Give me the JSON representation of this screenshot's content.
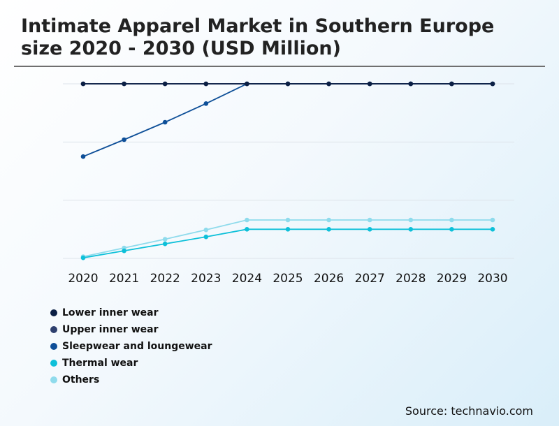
{
  "title": "Intimate Apparel Market in Southern Europe size 2020 - 2030 (USD Million)",
  "source": "Source: technavio.com",
  "chart_data": {
    "type": "line",
    "title": "Intimate Apparel Market in Southern Europe size 2020 - 2030 (USD Million)",
    "xlabel": "",
    "ylabel": "",
    "categories": [
      "2020",
      "2021",
      "2022",
      "2023",
      "2024",
      "2025",
      "2026",
      "2027",
      "2028",
      "2029",
      "2030"
    ],
    "ylim": [
      0,
      3
    ],
    "grid": true,
    "legend_position": "bottom-left",
    "series": [
      {
        "name": "Lower inner wear",
        "color": "#0b1f44",
        "values": [
          3,
          3,
          3,
          3,
          3,
          3,
          3,
          3,
          3,
          3,
          3
        ]
      },
      {
        "name": "Upper inner wear",
        "color": "#2d3f6e",
        "values": [
          3,
          3,
          3,
          3,
          3,
          3,
          3,
          3,
          3,
          3,
          3
        ]
      },
      {
        "name": "Sleepwear and loungewear",
        "color": "#0e4f98",
        "values": [
          1.75,
          2.04,
          2.34,
          2.66,
          3,
          3,
          3,
          3,
          3,
          3,
          3
        ]
      },
      {
        "name": "Thermal wear",
        "color": "#0ec0d9",
        "values": [
          0.01,
          0.13,
          0.25,
          0.37,
          0.5,
          0.5,
          0.5,
          0.5,
          0.5,
          0.5,
          0.5
        ]
      },
      {
        "name": "Others",
        "color": "#8fdbec",
        "values": [
          0.03,
          0.18,
          0.33,
          0.49,
          0.66,
          0.66,
          0.66,
          0.66,
          0.66,
          0.66,
          0.66
        ]
      }
    ]
  }
}
